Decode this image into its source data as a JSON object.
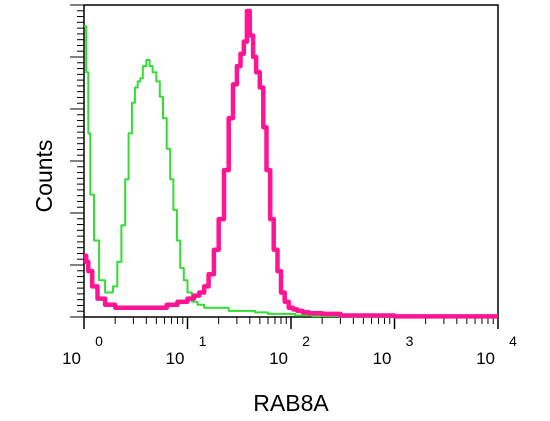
{
  "chart_data": {
    "type": "line",
    "title": "",
    "xlabel": "RAB8A",
    "ylabel": "Counts",
    "x_scale": "log",
    "xlim": [
      1,
      10000
    ],
    "ylim": [
      0,
      100
    ],
    "grid": false,
    "legend": "none",
    "x_ticks": [
      {
        "base": "10",
        "exp": "0",
        "value": 1
      },
      {
        "base": "10",
        "exp": "1",
        "value": 10
      },
      {
        "base": "10",
        "exp": "2",
        "value": 100
      },
      {
        "base": "10",
        "exp": "3",
        "value": 1000
      },
      {
        "base": "10",
        "exp": "4",
        "value": 10000
      }
    ],
    "series": [
      {
        "color": "#33dd33",
        "x": [
          1.0,
          1.05,
          1.1,
          1.15,
          1.25,
          1.4,
          1.6,
          1.9,
          2.1,
          2.3,
          2.5,
          2.7,
          2.9,
          3.1,
          3.3,
          3.5,
          3.7,
          4.0,
          4.3,
          4.6,
          5.0,
          5.4,
          5.8,
          6.3,
          6.8,
          7.3,
          7.9,
          8.5,
          9.2,
          10.0,
          11.0,
          12.5,
          14.5,
          17.0,
          20.0,
          25.0,
          33.0,
          45.0,
          60.0,
          80.0,
          110.0,
          160.0,
          300.0,
          1000.0,
          10000.0
        ],
        "y": [
          95,
          80,
          60,
          40,
          25,
          12,
          8,
          10,
          18,
          30,
          45,
          60,
          70,
          75,
          77,
          78,
          82,
          84,
          82,
          80,
          77,
          72,
          65,
          55,
          45,
          35,
          25,
          16,
          12,
          8,
          5,
          4,
          3,
          3,
          3,
          2,
          2,
          1.5,
          1,
          1,
          0.5,
          0.3,
          0,
          0,
          0
        ]
      },
      {
        "color": "#ff1493",
        "x": [
          1.0,
          1.05,
          1.1,
          1.2,
          1.35,
          1.6,
          2.0,
          2.5,
          3.2,
          4.0,
          5.0,
          6.3,
          8.0,
          10.0,
          11.5,
          13.0,
          14.5,
          16.0,
          18.0,
          20.0,
          22.5,
          25.0,
          27.5,
          30.0,
          32.5,
          35.0,
          37.5,
          40.0,
          43.0,
          46.0,
          50.0,
          54.0,
          58.0,
          63.0,
          68.0,
          74.0,
          80.0,
          87.0,
          95.0,
          105.0,
          115.0,
          130.0,
          150.0,
          200.0,
          300.0,
          1000.0,
          10000.0
        ],
        "y": [
          20,
          18,
          15,
          10,
          6,
          4,
          3,
          3,
          3,
          3,
          3,
          4,
          5,
          6,
          7,
          8,
          10,
          14,
          22,
          32,
          48,
          65,
          76,
          82,
          86,
          90,
          100,
          92,
          85,
          80,
          75,
          62,
          48,
          32,
          22,
          15,
          8,
          5,
          3,
          2.5,
          2,
          1.5,
          1.2,
          1,
          0.5,
          0.2,
          0.2
        ]
      }
    ]
  }
}
